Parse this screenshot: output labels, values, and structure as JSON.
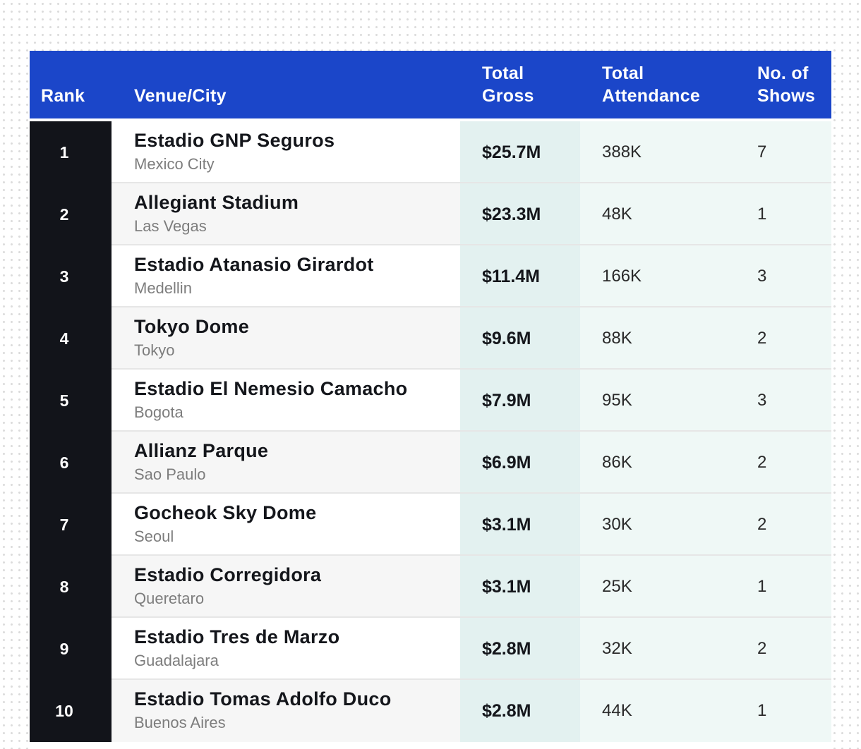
{
  "chart_data": {
    "type": "table",
    "columns": [
      "Rank",
      "Venue/City",
      "Total Gross",
      "Total Attendance",
      "No. of Shows"
    ],
    "rows": [
      {
        "rank": "1",
        "venue": "Estadio GNP Seguros",
        "city": "Mexico City",
        "gross": "$25.7M",
        "attendance": "388K",
        "shows": "7"
      },
      {
        "rank": "2",
        "venue": "Allegiant Stadium",
        "city": "Las Vegas",
        "gross": "$23.3M",
        "attendance": "48K",
        "shows": "1"
      },
      {
        "rank": "3",
        "venue": "Estadio Atanasio Girardot",
        "city": "Medellin",
        "gross": "$11.4M",
        "attendance": "166K",
        "shows": "3"
      },
      {
        "rank": "4",
        "venue": "Tokyo Dome",
        "city": "Tokyo",
        "gross": "$9.6M",
        "attendance": "88K",
        "shows": "2"
      },
      {
        "rank": "5",
        "venue": "Estadio El Nemesio Camacho",
        "city": "Bogota",
        "gross": "$7.9M",
        "attendance": "95K",
        "shows": "3"
      },
      {
        "rank": "6",
        "venue": "Allianz Parque",
        "city": "Sao Paulo",
        "gross": "$6.9M",
        "attendance": "86K",
        "shows": "2"
      },
      {
        "rank": "7",
        "venue": "Gocheok Sky Dome",
        "city": "Seoul",
        "gross": "$3.1M",
        "attendance": "30K",
        "shows": "2"
      },
      {
        "rank": "8",
        "venue": "Estadio Corregidora",
        "city": "Queretaro",
        "gross": "$3.1M",
        "attendance": "25K",
        "shows": "1"
      },
      {
        "rank": "9",
        "venue": "Estadio Tres de Marzo",
        "city": "Guadalajara",
        "gross": "$2.8M",
        "attendance": "32K",
        "shows": "2"
      },
      {
        "rank": "10",
        "venue": "Estadio Tomas Adolfo Duco",
        "city": "Buenos Aires",
        "gross": "$2.8M",
        "attendance": "44K",
        "shows": "1"
      }
    ]
  },
  "header": {
    "rank": "Rank",
    "venue_city": "Venue/City",
    "gross_line1": "Total",
    "gross_line2": "Gross",
    "attendance_line1": "Total",
    "attendance_line2": "Attendance",
    "shows_line1": "No. of",
    "shows_line2": "Shows"
  },
  "colors": {
    "header_bg": "#1b46c9",
    "rank_bg": "#12141a",
    "gross_bg": "#e3f1f0",
    "rest_bg": "#eff8f6"
  }
}
